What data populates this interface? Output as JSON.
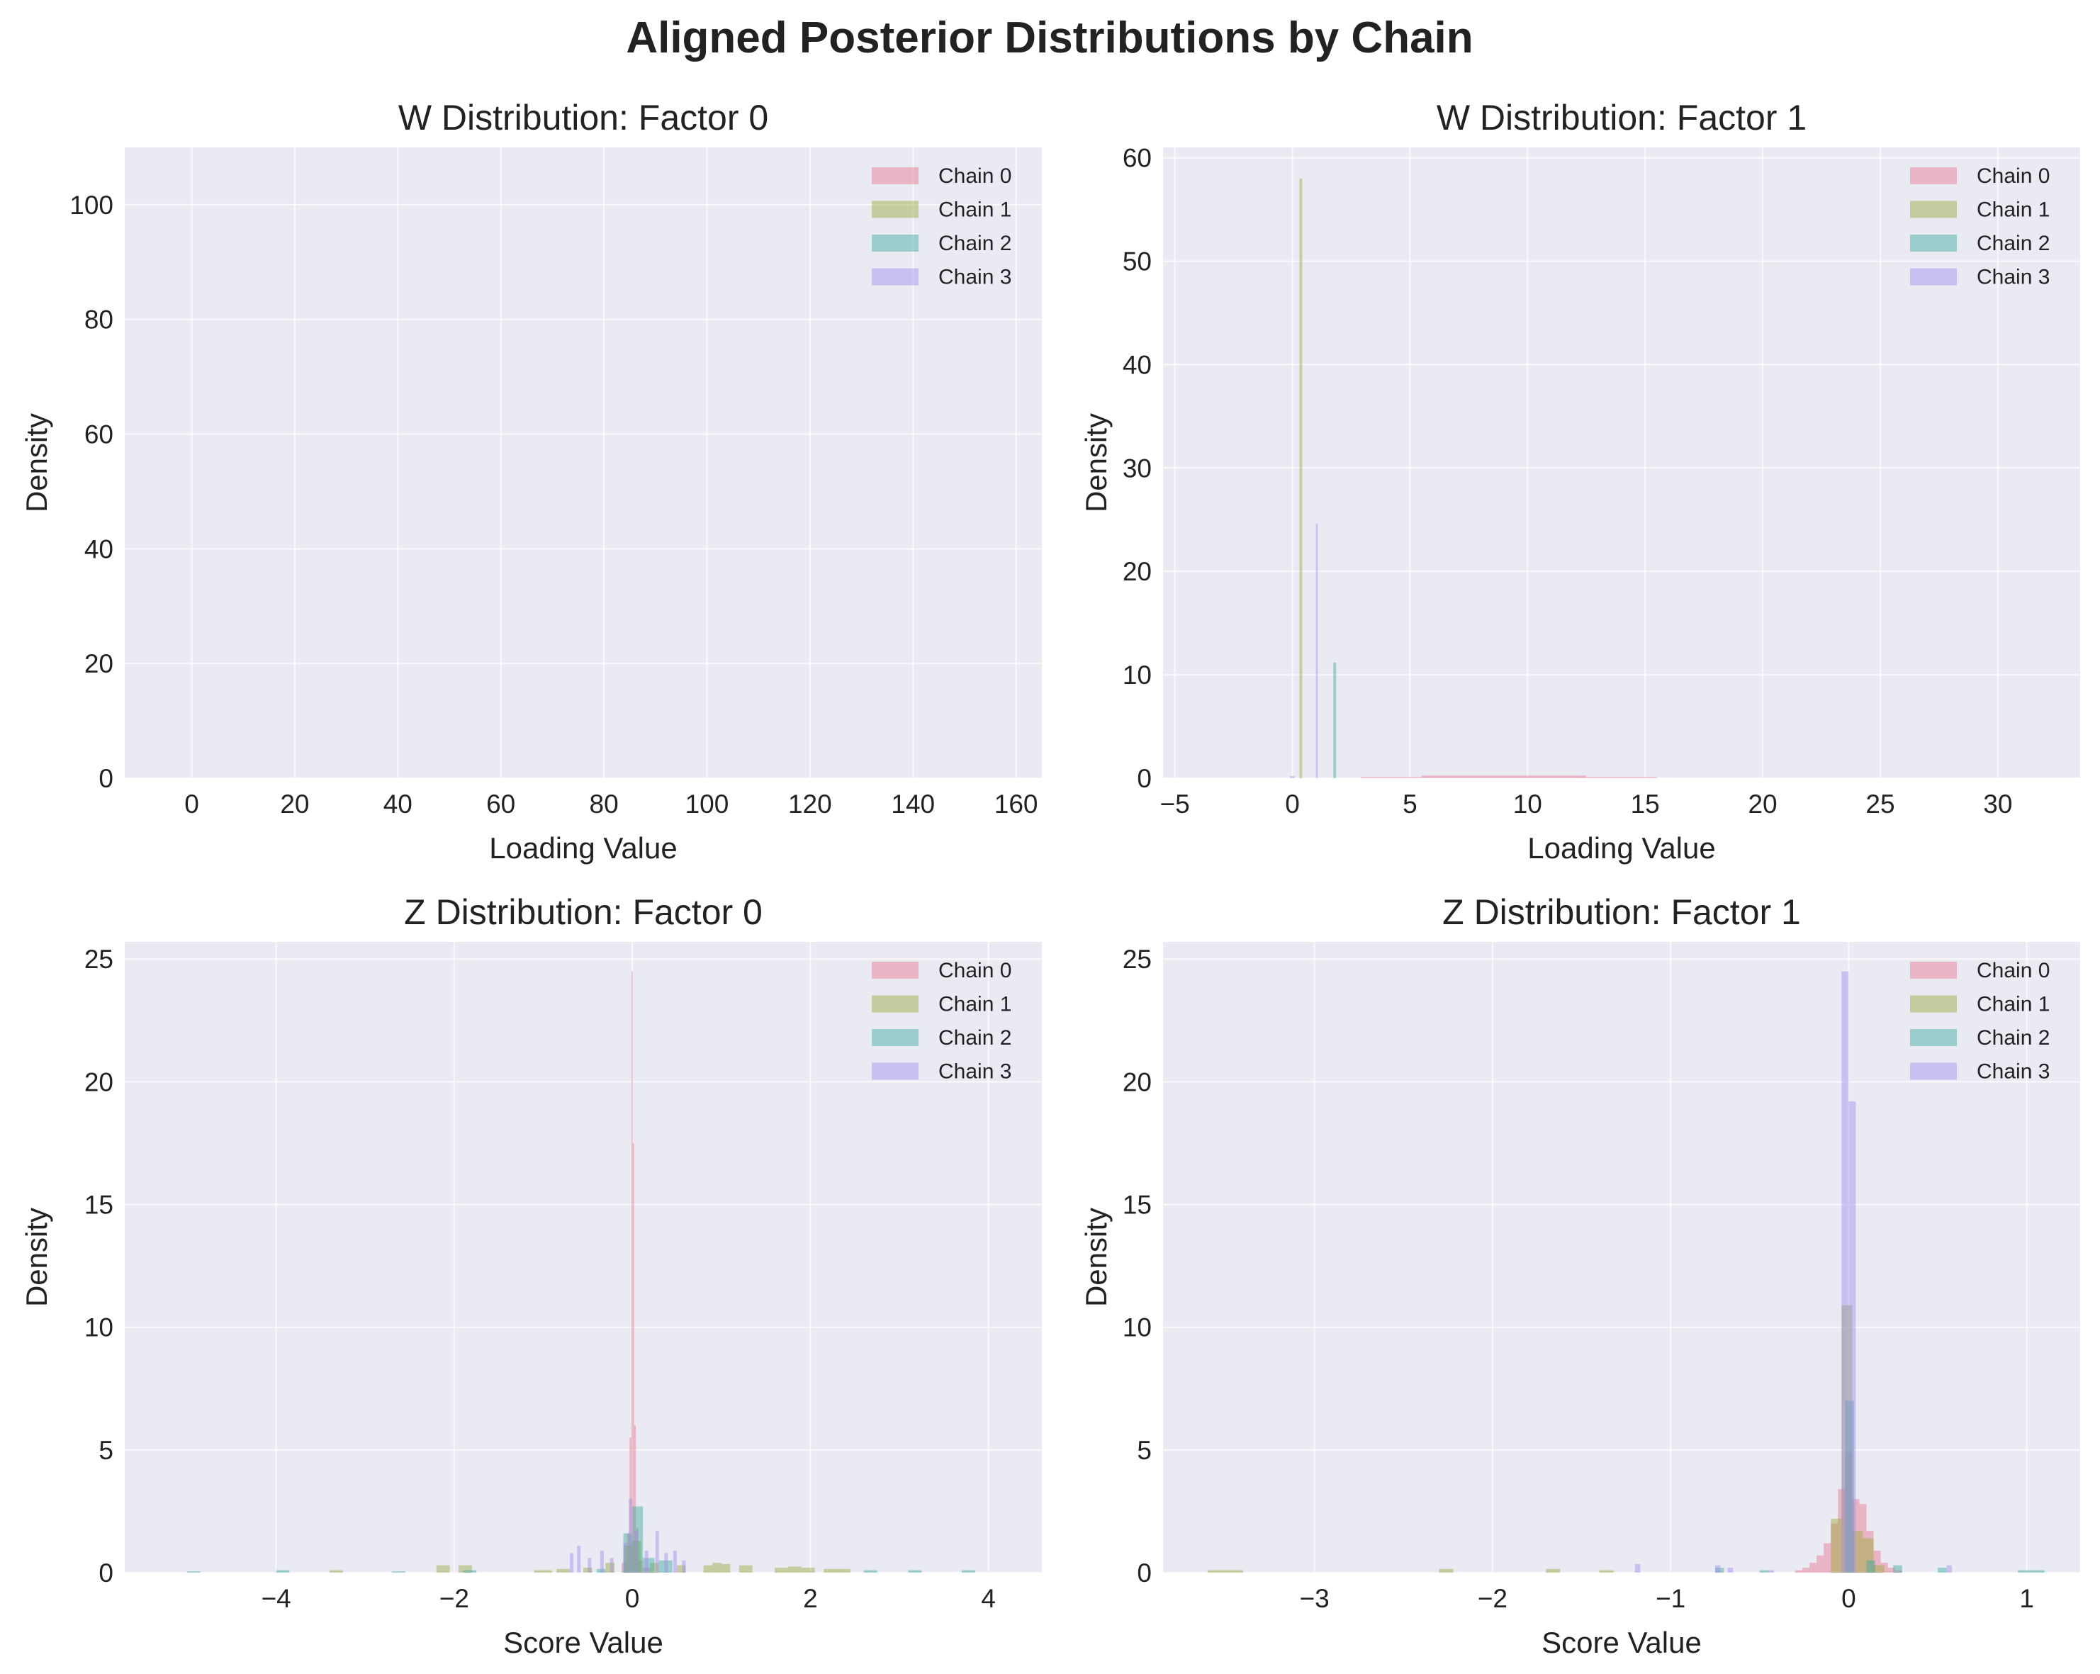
{
  "figure": {
    "title": "Aligned Posterior Distributions by Chain",
    "background": "#ffffff",
    "axes_background": "#eaeaf2",
    "grid_color": "#ffffff"
  },
  "chart_data": [
    {
      "type": "histogram",
      "title": "W Distribution: Factor 0",
      "xlabel": "Loading Value",
      "ylabel": "Density",
      "xlim": [
        -13,
        165
      ],
      "ylim": [
        0,
        110
      ],
      "xticks": [
        0,
        20,
        40,
        60,
        80,
        100,
        120,
        140,
        160
      ],
      "xtick_labels": [
        "0",
        "20",
        "40",
        "60",
        "80",
        "100",
        "120",
        "140",
        "160"
      ],
      "yticks": [
        0,
        20,
        40,
        60,
        80,
        100
      ],
      "ytick_labels": [
        "0",
        "20",
        "40",
        "60",
        "80",
        "100"
      ],
      "grid": true,
      "legend_position": "top-right",
      "series": [
        {
          "name": "Chain 0",
          "color": "#e8748c",
          "opacity": 0.45,
          "bins": []
        },
        {
          "name": "Chain 1",
          "color": "#9aa83a",
          "opacity": 0.45,
          "bins": []
        },
        {
          "name": "Chain 2",
          "color": "#3aab9e",
          "opacity": 0.45,
          "bins": []
        },
        {
          "name": "Chain 3",
          "color": "#a48cf0",
          "opacity": 0.45,
          "bins": []
        }
      ]
    },
    {
      "type": "histogram",
      "title": "W Distribution: Factor 1",
      "xlabel": "Loading Value",
      "ylabel": "Density",
      "xlim": [
        -5.5,
        33.5
      ],
      "ylim": [
        0,
        61
      ],
      "xticks": [
        -5,
        0,
        5,
        10,
        15,
        20,
        25,
        30
      ],
      "xtick_labels": [
        "−5",
        "0",
        "5",
        "10",
        "15",
        "20",
        "25",
        "30"
      ],
      "yticks": [
        0,
        10,
        20,
        30,
        40,
        50,
        60
      ],
      "ytick_labels": [
        "0",
        "10",
        "20",
        "30",
        "40",
        "50",
        "60"
      ],
      "grid": true,
      "legend_position": "top-right",
      "series": [
        {
          "name": "Chain 0",
          "color": "#e8748c",
          "opacity": 0.45,
          "bins": [
            [
              2.9,
              5.5,
              0.1
            ],
            [
              5.5,
              12.5,
              0.25
            ],
            [
              12.5,
              15.5,
              0.1
            ]
          ]
        },
        {
          "name": "Chain 1",
          "color": "#9aa83a",
          "opacity": 0.45,
          "bins": [
            [
              0.3,
              0.42,
              58
            ]
          ]
        },
        {
          "name": "Chain 2",
          "color": "#3aab9e",
          "opacity": 0.45,
          "bins": [
            [
              1.74,
              1.86,
              11.2
            ]
          ]
        },
        {
          "name": "Chain 3",
          "color": "#a48cf0",
          "opacity": 0.45,
          "bins": [
            [
              1.0,
              1.08,
              24.6
            ],
            [
              -0.1,
              0.1,
              0.2
            ]
          ]
        }
      ]
    },
    {
      "type": "histogram",
      "title": "Z Distribution: Factor 0",
      "xlabel": "Score Value",
      "ylabel": "Density",
      "xlim": [
        -5.7,
        4.6
      ],
      "ylim": [
        0,
        25.7
      ],
      "xticks": [
        -4,
        -2,
        0,
        2,
        4
      ],
      "xtick_labels": [
        "−4",
        "−2",
        "0",
        "2",
        "4"
      ],
      "yticks": [
        0,
        5,
        10,
        15,
        20,
        25
      ],
      "ytick_labels": [
        "0",
        "5",
        "10",
        "15",
        "20",
        "25"
      ],
      "grid": true,
      "legend_position": "top-right",
      "series": [
        {
          "name": "Chain 0",
          "color": "#e8748c",
          "opacity": 0.45,
          "bins": [
            [
              -0.12,
              -0.06,
              0.4
            ],
            [
              -0.06,
              -0.03,
              1.6
            ],
            [
              -0.03,
              -0.01,
              5.5
            ],
            [
              -0.01,
              0.005,
              24.5
            ],
            [
              0.005,
              0.02,
              17.5
            ],
            [
              0.02,
              0.04,
              6.0
            ],
            [
              0.04,
              0.07,
              1.8
            ],
            [
              0.07,
              0.12,
              0.5
            ],
            [
              0.12,
              0.2,
              0.2
            ]
          ]
        },
        {
          "name": "Chain 1",
          "color": "#9aa83a",
          "opacity": 0.45,
          "bins": [
            [
              -3.4,
              -3.25,
              0.1
            ],
            [
              -2.2,
              -2.05,
              0.3
            ],
            [
              -1.95,
              -1.8,
              0.3
            ],
            [
              -1.1,
              -0.9,
              0.1
            ],
            [
              -0.85,
              -0.7,
              0.15
            ],
            [
              -0.55,
              -0.45,
              0.2
            ],
            [
              -0.3,
              -0.2,
              0.4
            ],
            [
              -0.1,
              0.0,
              1.1
            ],
            [
              0.0,
              0.1,
              1.3
            ],
            [
              0.2,
              0.3,
              0.4
            ],
            [
              0.5,
              0.6,
              0.3
            ],
            [
              0.8,
              0.9,
              0.3
            ],
            [
              0.9,
              1.0,
              0.4
            ],
            [
              1.0,
              1.1,
              0.35
            ],
            [
              1.2,
              1.35,
              0.3
            ],
            [
              1.6,
              1.75,
              0.2
            ],
            [
              1.75,
              1.9,
              0.25
            ],
            [
              1.9,
              2.05,
              0.2
            ],
            [
              2.15,
              2.3,
              0.15
            ],
            [
              2.3,
              2.45,
              0.15
            ]
          ]
        },
        {
          "name": "Chain 2",
          "color": "#3aab9e",
          "opacity": 0.45,
          "bins": [
            [
              -5.0,
              -4.85,
              0.05
            ],
            [
              -4.0,
              -3.85,
              0.1
            ],
            [
              -2.7,
              -2.55,
              0.05
            ],
            [
              -1.9,
              -1.75,
              0.1
            ],
            [
              -0.4,
              -0.3,
              0.15
            ],
            [
              -0.1,
              0.0,
              1.6
            ],
            [
              0.0,
              0.12,
              2.7
            ],
            [
              0.12,
              0.25,
              0.6
            ],
            [
              0.3,
              0.45,
              0.5
            ],
            [
              2.6,
              2.75,
              0.1
            ],
            [
              3.1,
              3.25,
              0.1
            ],
            [
              3.7,
              3.85,
              0.1
            ]
          ]
        },
        {
          "name": "Chain 3",
          "color": "#a48cf0",
          "opacity": 0.45,
          "bins": [
            [
              -0.7,
              -0.66,
              0.8
            ],
            [
              -0.62,
              -0.58,
              1.1
            ],
            [
              -0.5,
              -0.46,
              0.6
            ],
            [
              -0.36,
              -0.32,
              0.9
            ],
            [
              -0.25,
              -0.21,
              0.6
            ],
            [
              -0.1,
              -0.06,
              1.2
            ],
            [
              -0.04,
              0.0,
              3.0
            ],
            [
              0.02,
              0.06,
              1.7
            ],
            [
              0.14,
              0.18,
              0.9
            ],
            [
              0.26,
              0.3,
              1.7
            ],
            [
              0.36,
              0.4,
              0.8
            ],
            [
              0.46,
              0.5,
              0.9
            ],
            [
              0.56,
              0.6,
              0.5
            ]
          ]
        }
      ]
    },
    {
      "type": "histogram",
      "title": "Z Distribution: Factor 1",
      "xlabel": "Score Value",
      "ylabel": "Density",
      "xlim": [
        -3.85,
        1.3
      ],
      "ylim": [
        0,
        25.7
      ],
      "xticks": [
        -3,
        -2,
        -1,
        0,
        1
      ],
      "xtick_labels": [
        "−3",
        "−2",
        "−1",
        "0",
        "1"
      ],
      "yticks": [
        0,
        5,
        10,
        15,
        20,
        25
      ],
      "ytick_labels": [
        "0",
        "5",
        "10",
        "15",
        "20",
        "25"
      ],
      "grid": true,
      "legend_position": "top-right",
      "series": [
        {
          "name": "Chain 0",
          "color": "#e8748c",
          "opacity": 0.45,
          "bins": [
            [
              -0.3,
              -0.26,
              0.1
            ],
            [
              -0.26,
              -0.22,
              0.2
            ],
            [
              -0.22,
              -0.18,
              0.4
            ],
            [
              -0.18,
              -0.14,
              0.7
            ],
            [
              -0.14,
              -0.1,
              1.2
            ],
            [
              -0.1,
              -0.06,
              2.0
            ],
            [
              -0.06,
              -0.02,
              3.4
            ],
            [
              -0.02,
              0.02,
              4.9
            ],
            [
              0.02,
              0.06,
              3.0
            ],
            [
              0.06,
              0.1,
              2.8
            ],
            [
              0.1,
              0.14,
              1.7
            ],
            [
              0.14,
              0.18,
              0.9
            ],
            [
              0.18,
              0.22,
              0.4
            ],
            [
              0.22,
              0.26,
              0.2
            ],
            [
              0.26,
              0.3,
              0.1
            ]
          ]
        },
        {
          "name": "Chain 1",
          "color": "#9aa83a",
          "opacity": 0.45,
          "bins": [
            [
              -3.6,
              -3.4,
              0.1
            ],
            [
              -2.3,
              -2.22,
              0.15
            ],
            [
              -1.7,
              -1.62,
              0.15
            ],
            [
              -1.4,
              -1.32,
              0.1
            ],
            [
              -0.1,
              -0.04,
              2.2
            ],
            [
              -0.04,
              0.02,
              10.9
            ],
            [
              0.02,
              0.08,
              1.7
            ],
            [
              0.08,
              0.14,
              1.4
            ],
            [
              0.14,
              0.2,
              0.3
            ]
          ]
        },
        {
          "name": "Chain 2",
          "color": "#3aab9e",
          "opacity": 0.45,
          "bins": [
            [
              -0.75,
              -0.7,
              0.2
            ],
            [
              -0.5,
              -0.45,
              0.1
            ],
            [
              -0.02,
              0.03,
              7.0
            ],
            [
              0.1,
              0.15,
              0.5
            ],
            [
              0.25,
              0.3,
              0.3
            ],
            [
              0.5,
              0.55,
              0.2
            ],
            [
              0.95,
              1.1,
              0.1
            ]
          ]
        },
        {
          "name": "Chain 3",
          "color": "#a48cf0",
          "opacity": 0.45,
          "bins": [
            [
              -1.2,
              -1.17,
              0.35
            ],
            [
              -0.75,
              -0.72,
              0.3
            ],
            [
              -0.68,
              -0.65,
              0.2
            ],
            [
              -0.45,
              -0.42,
              0.1
            ],
            [
              -0.04,
              0.0,
              24.5
            ],
            [
              0.0,
              0.04,
              19.2
            ],
            [
              0.55,
              0.58,
              0.3
            ]
          ]
        }
      ]
    }
  ]
}
